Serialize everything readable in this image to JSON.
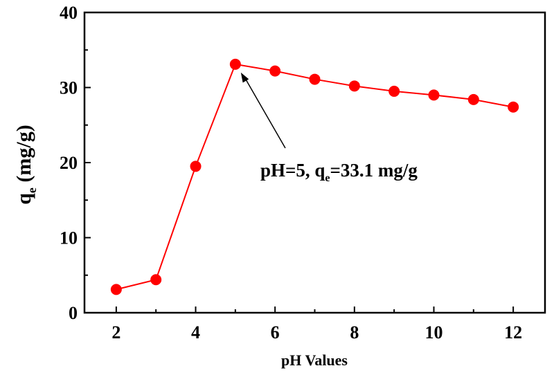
{
  "chart_data": {
    "type": "line",
    "title": "",
    "xlabel": "pH Values",
    "ylabel": {
      "main": "q",
      "sub": "e",
      "unit": " (mg/g)"
    },
    "xlim": [
      1.2,
      12.8
    ],
    "ylim": [
      0,
      40
    ],
    "xticks": [
      2,
      4,
      6,
      8,
      10,
      12
    ],
    "xticks_minor": [
      3,
      5,
      7,
      9,
      11
    ],
    "yticks": [
      0,
      10,
      20,
      30,
      40
    ],
    "yticks_minor": [
      5,
      15,
      25,
      35
    ],
    "grid": false,
    "legend": "none",
    "series": [
      {
        "x": [
          2,
          3,
          4,
          5,
          6,
          7,
          8,
          9,
          10,
          11,
          12
        ],
        "y": [
          3.1,
          4.4,
          19.5,
          33.1,
          32.2,
          31.1,
          30.2,
          29.5,
          29.0,
          28.4,
          27.4
        ],
        "color": "#ff0000",
        "marker": "circle"
      }
    ],
    "annotation": {
      "pre": "pH=5, q",
      "sub": "e",
      "post": "=33.1 mg/g",
      "points_to": {
        "x": 5,
        "y": 33.1
      }
    }
  }
}
